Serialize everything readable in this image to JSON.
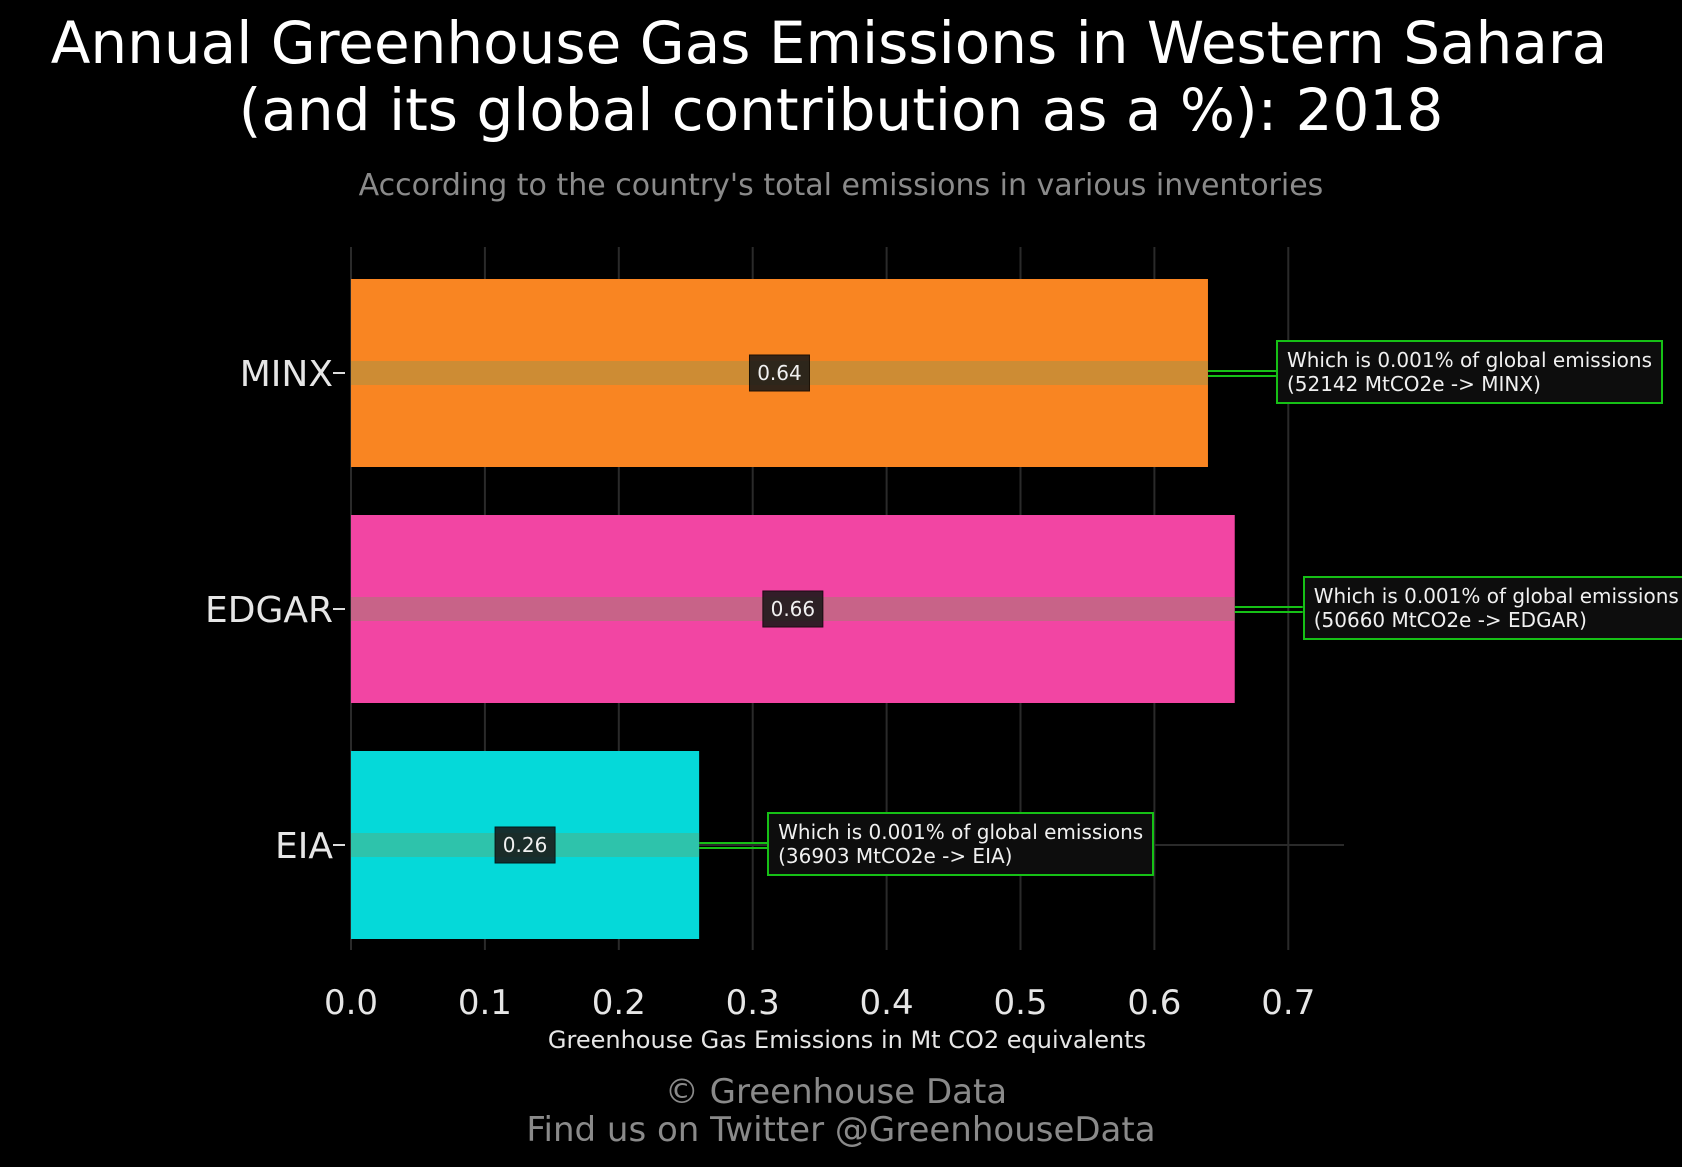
{
  "title_line1": "Annual Greenhouse Gas Emissions in Western Sahara",
  "title_line2": "(and its global contribution as a %): 2018",
  "subtitle": "According to the country's total emissions in various inventories",
  "footer_line1": "© Greenhouse Data",
  "footer_line2": "Find us on Twitter @GreenhouseData",
  "chart_data": {
    "type": "bar",
    "orientation": "horizontal",
    "categories": [
      "MINX",
      "EDGAR",
      "EIA"
    ],
    "values": [
      0.64,
      0.66,
      0.26
    ],
    "value_labels": [
      "0.64",
      "0.66",
      "0.26"
    ],
    "colors": [
      "#f98522",
      "#f245a3",
      "#05d9d9"
    ],
    "xlabel": "Greenhouse Gas Emissions in Mt CO2 equivalents",
    "ylabel": "",
    "xlim": [
      0,
      0.74
    ],
    "xticks": [
      "0.0",
      "0.1",
      "0.2",
      "0.3",
      "0.4",
      "0.5",
      "0.6",
      "0.7"
    ],
    "grid": true,
    "annotations": [
      {
        "line1": "Which is 0.001% of global emissions",
        "line2": "(52142 MtCO2e -> MINX)"
      },
      {
        "line1": "Which is 0.001% of global emissions",
        "line2": "(50660 MtCO2e -> EDGAR)"
      },
      {
        "line1": "Which is 0.001% of global emissions",
        "line2": "(36903 MtCO2e -> EIA)"
      }
    ],
    "annotation_color": "#16c016"
  }
}
